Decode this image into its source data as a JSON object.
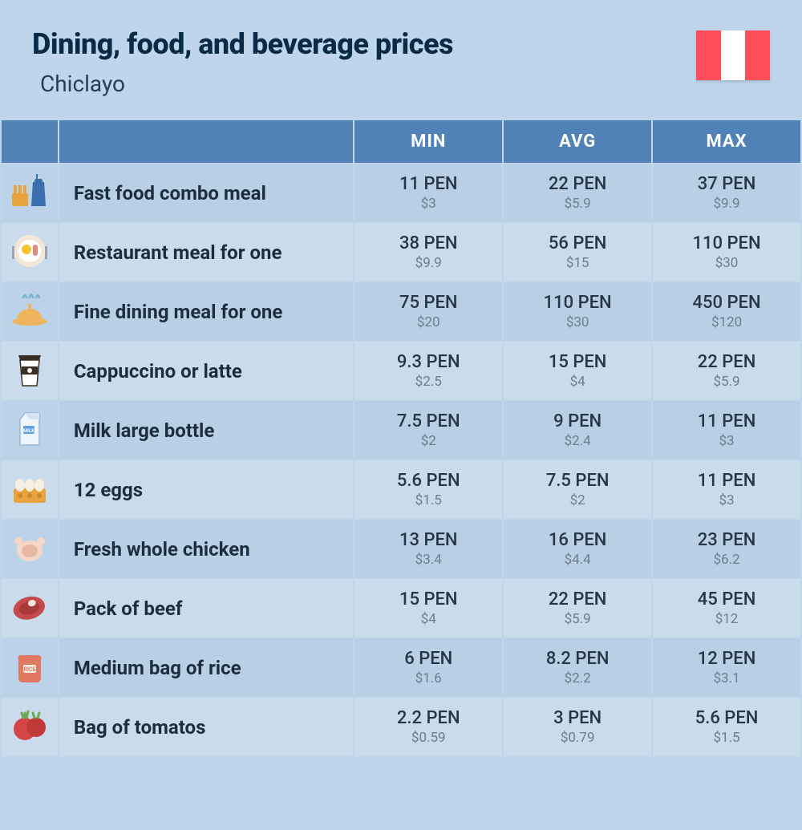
{
  "header": {
    "title": "Dining, food, and beverage prices",
    "subtitle": "Chiclayo",
    "flag_colors": [
      "#ff4d5a",
      "#ffffff",
      "#ff4d5a"
    ]
  },
  "table": {
    "columns": [
      "MIN",
      "AVG",
      "MAX"
    ],
    "header_bg": "#5081b7",
    "header_text_color": "#ffffff",
    "row_bg_odd": "#b9cfe6",
    "row_bg_even": "#cadbec",
    "label_fontsize": 24,
    "price_fontsize": 22,
    "usd_fontsize": 17,
    "rows": [
      {
        "icon_name": "fast-food-icon",
        "label": "Fast food combo meal",
        "min": {
          "local": "11 PEN",
          "usd": "$3"
        },
        "avg": {
          "local": "22 PEN",
          "usd": "$5.9"
        },
        "max": {
          "local": "37 PEN",
          "usd": "$9.9"
        }
      },
      {
        "icon_name": "restaurant-meal-icon",
        "label": "Restaurant meal for one",
        "min": {
          "local": "38 PEN",
          "usd": "$9.9"
        },
        "avg": {
          "local": "56 PEN",
          "usd": "$15"
        },
        "max": {
          "local": "110 PEN",
          "usd": "$30"
        }
      },
      {
        "icon_name": "fine-dining-icon",
        "label": "Fine dining meal for one",
        "min": {
          "local": "75 PEN",
          "usd": "$20"
        },
        "avg": {
          "local": "110 PEN",
          "usd": "$30"
        },
        "max": {
          "local": "450 PEN",
          "usd": "$120"
        }
      },
      {
        "icon_name": "coffee-icon",
        "label": "Cappuccino or latte",
        "min": {
          "local": "9.3 PEN",
          "usd": "$2.5"
        },
        "avg": {
          "local": "15 PEN",
          "usd": "$4"
        },
        "max": {
          "local": "22 PEN",
          "usd": "$5.9"
        }
      },
      {
        "icon_name": "milk-icon",
        "label": "Milk large bottle",
        "min": {
          "local": "7.5 PEN",
          "usd": "$2"
        },
        "avg": {
          "local": "9 PEN",
          "usd": "$2.4"
        },
        "max": {
          "local": "11 PEN",
          "usd": "$3"
        }
      },
      {
        "icon_name": "eggs-icon",
        "label": "12 eggs",
        "min": {
          "local": "5.6 PEN",
          "usd": "$1.5"
        },
        "avg": {
          "local": "7.5 PEN",
          "usd": "$2"
        },
        "max": {
          "local": "11 PEN",
          "usd": "$3"
        }
      },
      {
        "icon_name": "chicken-icon",
        "label": "Fresh whole chicken",
        "min": {
          "local": "13 PEN",
          "usd": "$3.4"
        },
        "avg": {
          "local": "16 PEN",
          "usd": "$4.4"
        },
        "max": {
          "local": "23 PEN",
          "usd": "$6.2"
        }
      },
      {
        "icon_name": "beef-icon",
        "label": "Pack of beef",
        "min": {
          "local": "15 PEN",
          "usd": "$4"
        },
        "avg": {
          "local": "22 PEN",
          "usd": "$5.9"
        },
        "max": {
          "local": "45 PEN",
          "usd": "$12"
        }
      },
      {
        "icon_name": "rice-icon",
        "label": "Medium bag of rice",
        "min": {
          "local": "6 PEN",
          "usd": "$1.6"
        },
        "avg": {
          "local": "8.2 PEN",
          "usd": "$2.2"
        },
        "max": {
          "local": "12 PEN",
          "usd": "$3.1"
        }
      },
      {
        "icon_name": "tomato-icon",
        "label": "Bag of tomatos",
        "min": {
          "local": "2.2 PEN",
          "usd": "$0.59"
        },
        "avg": {
          "local": "3 PEN",
          "usd": "$0.79"
        },
        "max": {
          "local": "5.6 PEN",
          "usd": "$1.5"
        }
      }
    ]
  },
  "icons": {
    "fast-food-icon": {
      "primary": "#e8a33d",
      "secondary": "#3b6fae"
    },
    "restaurant-meal-icon": {
      "primary": "#f2e7d8",
      "secondary": "#e58b7b"
    },
    "fine-dining-icon": {
      "primary": "#efb55e",
      "secondary": "#7fb3d5"
    },
    "coffee-icon": {
      "primary": "#ffffff",
      "secondary": "#3a2e25"
    },
    "milk-icon": {
      "primary": "#eef4fb",
      "secondary": "#5da0e0"
    },
    "eggs-icon": {
      "primary": "#e8a33d",
      "secondary": "#f6efe2"
    },
    "chicken-icon": {
      "primary": "#f4d7c8",
      "secondary": "#e8b9a2"
    },
    "beef-icon": {
      "primary": "#c44b4b",
      "secondary": "#f2e7d8"
    },
    "rice-icon": {
      "primary": "#e07862",
      "secondary": "#f6efe2"
    },
    "tomato-icon": {
      "primary": "#d64545",
      "secondary": "#6aa84f"
    }
  }
}
